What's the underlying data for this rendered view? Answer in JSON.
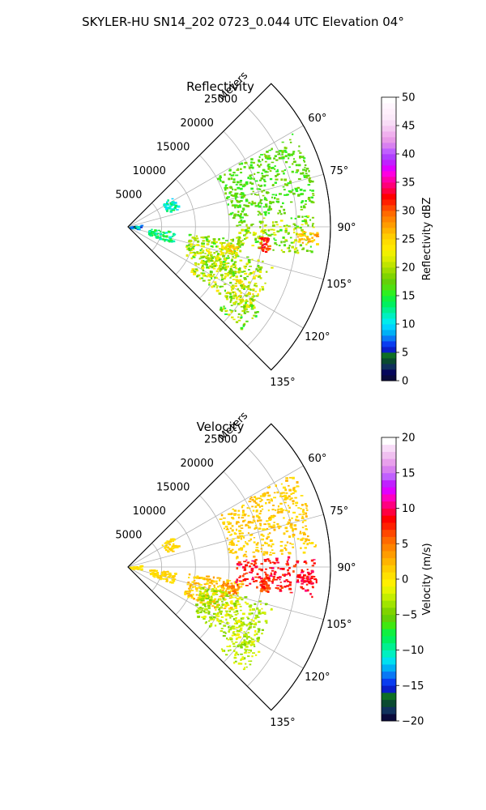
{
  "figure": {
    "suptitle": "SKYLER-HU  SN14_202  0723_0.044 UTC Elevation 04°"
  },
  "chart_data": [
    {
      "type": "heatmap",
      "subtype": "polar-sector radar PPI",
      "title": "Reflectivity",
      "range_label": "Meters",
      "range_ticks": [
        5000,
        10000,
        15000,
        20000,
        25000
      ],
      "range_tick_labels": [
        "5000",
        "10000",
        "15000",
        "20000",
        "25000"
      ],
      "rmax": 30000,
      "theta_ticks": [
        60,
        75,
        90,
        105,
        120,
        135
      ],
      "theta_tick_labels": [
        "60°",
        "75°",
        "90°",
        "105°",
        "120°",
        "135°"
      ],
      "theta_range": [
        45,
        135
      ],
      "colorbar": {
        "label": "Reflectivity dBZ",
        "min": 0,
        "max": 50,
        "ticks": [
          0,
          5,
          10,
          15,
          20,
          25,
          30,
          35,
          40,
          45,
          50
        ],
        "tick_labels": [
          "0",
          "5",
          "10",
          "15",
          "20",
          "25",
          "30",
          "35",
          "40",
          "45",
          "50"
        ],
        "colors": [
          "#0a0a3c",
          "#06065a",
          "#10305c",
          "#0a4a30",
          "#0e6e24",
          "#0a1ec8",
          "#0a3cf0",
          "#0a78f5",
          "#00b0f5",
          "#00d2ff",
          "#00ecec",
          "#00f0c0",
          "#00f090",
          "#00f060",
          "#10f040",
          "#2ef020",
          "#50e010",
          "#64d008",
          "#80d400",
          "#a0dc00",
          "#c0e400",
          "#dcec00",
          "#f0f000",
          "#ffe800",
          "#ffdc00",
          "#ffcc00",
          "#ffb400",
          "#ff9c00",
          "#ff8400",
          "#ff6a00",
          "#ff4800",
          "#ff2000",
          "#ff0000",
          "#ff0040",
          "#ff0078",
          "#ff00aa",
          "#ff00e0",
          "#e000ff",
          "#c020ff",
          "#b040ff",
          "#c060ff",
          "#d880f0",
          "#e89ae8",
          "#f0b0ee",
          "#f4c8f2",
          "#f8dcf6",
          "#fceafa",
          "#fff0fc",
          "#fff6fe",
          "#ffffff"
        ]
      },
      "echo_regions": [
        {
          "theta": [
            96,
            116
          ],
          "r": [
            9000,
            17000
          ],
          "value": 19,
          "jitter": 4
        },
        {
          "theta": [
            104,
            126
          ],
          "r": [
            11000,
            22000
          ],
          "value": 20,
          "jitter": 4
        },
        {
          "theta": [
            86,
            99
          ],
          "r": [
            16000,
            27500
          ],
          "value": 19,
          "jitter": 4
        },
        {
          "theta": [
            91,
            95
          ],
          "r": [
            25000,
            28000
          ],
          "value": 26,
          "jitter": 3
        },
        {
          "theta": [
            94,
            100
          ],
          "r": [
            19500,
            21000
          ],
          "value": 31,
          "jitter": 3
        },
        {
          "theta": [
            115,
            124
          ],
          "r": [
            17500,
            21500
          ],
          "value": 22,
          "jitter": 4
        },
        {
          "theta": [
            122,
            132
          ],
          "r": [
            18000,
            23000
          ],
          "value": 18,
          "jitter": 4
        },
        {
          "theta": [
            99,
            104
          ],
          "r": [
            14000,
            16500
          ],
          "value": 24,
          "jitter": 3
        },
        {
          "theta": [
            55,
            70
          ],
          "r": [
            6000,
            8000
          ],
          "value": 12,
          "jitter": 3
        },
        {
          "theta": [
            95,
            110
          ],
          "r": [
            3000,
            7000
          ],
          "value": 13,
          "jitter": 3
        },
        {
          "theta": [
            80,
            100
          ],
          "r": [
            200,
            2000
          ],
          "value": 8,
          "jitter": 5
        },
        {
          "theta": [
            60,
            85
          ],
          "r": [
            15000,
            28000
          ],
          "value": 17,
          "jitter": 2
        }
      ]
    },
    {
      "type": "heatmap",
      "subtype": "polar-sector radar PPI",
      "title": "Velocity",
      "range_label": "Meters",
      "range_ticks": [
        5000,
        10000,
        15000,
        20000,
        25000
      ],
      "range_tick_labels": [
        "5000",
        "10000",
        "15000",
        "20000",
        "25000"
      ],
      "rmax": 30000,
      "theta_ticks": [
        60,
        75,
        90,
        105,
        120,
        135
      ],
      "theta_tick_labels": [
        "60°",
        "75°",
        "90°",
        "105°",
        "120°",
        "135°"
      ],
      "theta_range": [
        45,
        135
      ],
      "colorbar": {
        "label": "Velocity (m/s)",
        "min": -20,
        "max": 20,
        "ticks": [
          -20,
          -15,
          -10,
          -5,
          0,
          5,
          10,
          15,
          20
        ],
        "tick_labels": [
          "−20",
          "−15",
          "−10",
          "−5",
          "0",
          "5",
          "10",
          "15",
          "20"
        ],
        "colors": [
          "#0a0a3c",
          "#10305c",
          "#0a4a30",
          "#0e6e24",
          "#0a1ec8",
          "#0a3cf0",
          "#0a78f5",
          "#00b0f5",
          "#00e0f0",
          "#00f0c0",
          "#00f090",
          "#00f060",
          "#10f040",
          "#40e810",
          "#64d008",
          "#80d400",
          "#a0e400",
          "#c4ee00",
          "#e6f400",
          "#fff000",
          "#ffe000",
          "#ffcc00",
          "#ffb400",
          "#ff9c00",
          "#ff8400",
          "#ff6a00",
          "#ff4800",
          "#ff2000",
          "#ff0000",
          "#ff0040",
          "#ff0080",
          "#ff00c0",
          "#e000ff",
          "#c020ff",
          "#c060ff",
          "#d880f0",
          "#e8a0ec",
          "#f0c0f0",
          "#f8dcf8",
          "#ffffff"
        ]
      },
      "echo_regions": [
        {
          "theta": [
            96,
            116
          ],
          "r": [
            9000,
            17000
          ],
          "value": 1.5,
          "jitter": 2
        },
        {
          "theta": [
            104,
            126
          ],
          "r": [
            11000,
            22000
          ],
          "value": -3,
          "jitter": 2
        },
        {
          "theta": [
            86,
            99
          ],
          "r": [
            16000,
            27500
          ],
          "value": 8.5,
          "jitter": 2
        },
        {
          "theta": [
            91,
            95
          ],
          "r": [
            25000,
            28000
          ],
          "value": 9,
          "jitter": 1.5
        },
        {
          "theta": [
            94,
            100
          ],
          "r": [
            19500,
            21000
          ],
          "value": 7,
          "jitter": 2
        },
        {
          "theta": [
            115,
            124
          ],
          "r": [
            17500,
            21500
          ],
          "value": -2,
          "jitter": 2
        },
        {
          "theta": [
            122,
            132
          ],
          "r": [
            18000,
            23000
          ],
          "value": -3,
          "jitter": 2
        },
        {
          "theta": [
            99,
            104
          ],
          "r": [
            14000,
            16500
          ],
          "value": 4,
          "jitter": 2
        },
        {
          "theta": [
            55,
            70
          ],
          "r": [
            6000,
            8000
          ],
          "value": 1,
          "jitter": 1
        },
        {
          "theta": [
            95,
            110
          ],
          "r": [
            3000,
            7000
          ],
          "value": 1,
          "jitter": 1
        },
        {
          "theta": [
            80,
            100
          ],
          "r": [
            200,
            2000
          ],
          "value": 0.5,
          "jitter": 1
        },
        {
          "theta": [
            60,
            85
          ],
          "r": [
            15000,
            28000
          ],
          "value": 1.5,
          "jitter": 1
        }
      ]
    }
  ]
}
